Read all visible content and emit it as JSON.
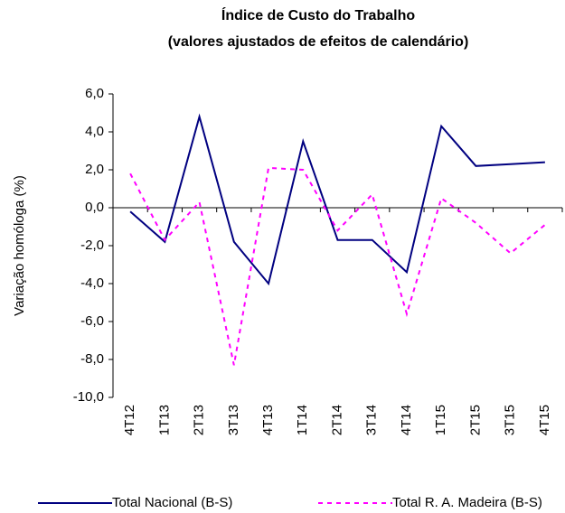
{
  "chart_data": {
    "type": "line",
    "title": "Índice de Custo do Trabalho",
    "subtitle": "(valores ajustados de efeitos de calendário)",
    "y_label": "Variação homóloga (%)",
    "categories": [
      "4T12",
      "1T13",
      "2T13",
      "3T13",
      "4T13",
      "1T14",
      "2T14",
      "3T14",
      "4T14",
      "1T15",
      "2T15",
      "3T15",
      "4T15"
    ],
    "series": [
      {
        "name": "Total Nacional (B-S)",
        "color": "#000080",
        "dash": "solid",
        "values": [
          -0.2,
          -1.8,
          4.8,
          -1.8,
          -4.0,
          3.5,
          -1.7,
          -1.7,
          -3.4,
          4.3,
          2.2,
          2.3,
          2.4
        ]
      },
      {
        "name": "Total R. A. Madeira (B-S)",
        "color": "#ff00ff",
        "dash": "dashed",
        "values": [
          1.8,
          -1.7,
          0.3,
          -8.3,
          2.1,
          2.0,
          -1.2,
          0.7,
          -5.6,
          0.5,
          -0.8,
          -2.4,
          -0.9
        ]
      }
    ],
    "ylim": [
      -10,
      6
    ],
    "yticks": [
      {
        "value": -10,
        "label": "-10,0"
      },
      {
        "value": -8,
        "label": "-8,0"
      },
      {
        "value": -6,
        "label": "-6,0"
      },
      {
        "value": -4,
        "label": "-4,0"
      },
      {
        "value": -2,
        "label": "-2,0"
      },
      {
        "value": 0,
        "label": "0,0"
      },
      {
        "value": 2,
        "label": "2,0"
      },
      {
        "value": 4,
        "label": "4,0"
      },
      {
        "value": 6,
        "label": "6,0"
      }
    ],
    "legend": "bottom"
  }
}
